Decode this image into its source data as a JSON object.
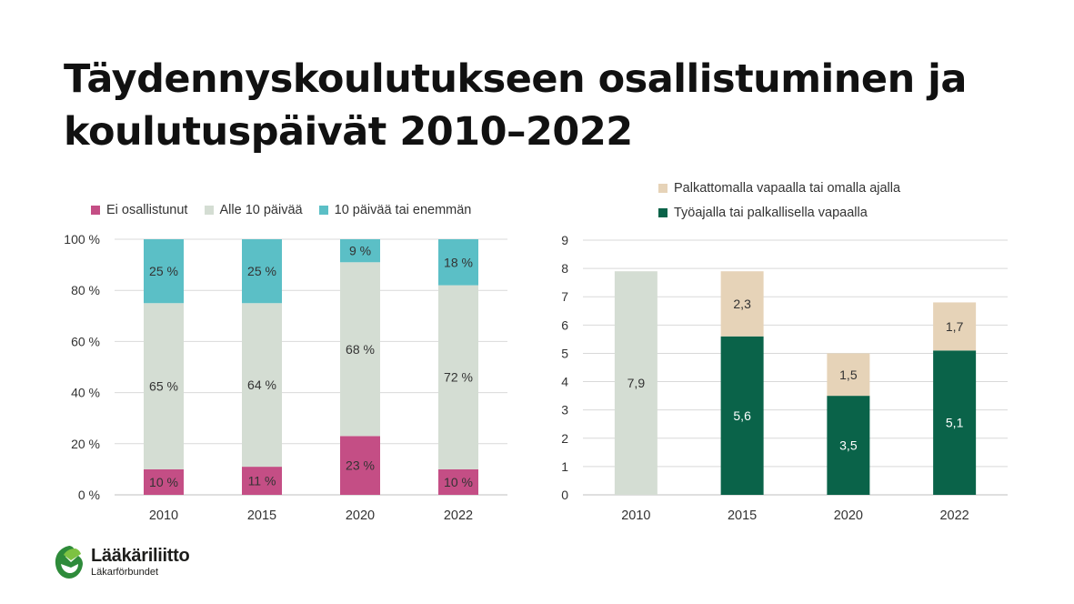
{
  "title": {
    "line1": "Täydennyskoulutukseen osallistuminen ja",
    "line2": "koulutuspäivät 2010–2022"
  },
  "logo": {
    "name": "Lääkäriliitto",
    "sub": "Läkarförbundet",
    "icon": "laakariliitto-logo-icon"
  },
  "colors": {
    "ei": "#c44e85",
    "alle": "#d4ddd3",
    "yli": "#5bbfc6",
    "palkaton": "#e6d3b8",
    "tyoaika": "#0a6349",
    "total2010": "#d4ddd3",
    "grid": "#d9d9d9",
    "axis": "#bfbfbf",
    "text": "#333333"
  },
  "chart_data": [
    {
      "type": "bar",
      "stacked": true,
      "categories": [
        "2010",
        "2015",
        "2020",
        "2022"
      ],
      "series": [
        {
          "name": "Ei osallistunut",
          "values": [
            10,
            11,
            23,
            10
          ],
          "labels": [
            "10 %",
            "11 %",
            "23 %",
            "10 %"
          ]
        },
        {
          "name": "Alle 10 päivää",
          "values": [
            65,
            64,
            68,
            72
          ],
          "labels": [
            "65 %",
            "64 %",
            "68 %",
            "72 %"
          ]
        },
        {
          "name": "10 päivää tai enemmän",
          "values": [
            25,
            25,
            9,
            18
          ],
          "labels": [
            "25 %",
            "25 %",
            "9 %",
            "18 %"
          ]
        }
      ],
      "yticks": [
        "0 %",
        "20 %",
        "40 %",
        "60 %",
        "80 %",
        "100 %"
      ],
      "ylim": [
        0,
        100
      ],
      "legend": "top"
    },
    {
      "type": "bar",
      "stacked": true,
      "categories": [
        "2010",
        "2015",
        "2020",
        "2022"
      ],
      "total_2010": {
        "value": 7.9,
        "label": "7,9"
      },
      "series": [
        {
          "name": "Työajalla tai palkallisella vapaalla",
          "values": [
            null,
            5.6,
            3.5,
            5.1
          ],
          "labels": [
            "",
            "5,6",
            "3,5",
            "5,1"
          ]
        },
        {
          "name": "Palkattomalla vapaalla tai omalla ajalla",
          "values": [
            null,
            2.3,
            1.5,
            1.7
          ],
          "labels": [
            "",
            "2,3",
            "1,5",
            "1,7"
          ]
        }
      ],
      "yticks": [
        "0",
        "1",
        "2",
        "3",
        "4",
        "5",
        "6",
        "7",
        "8",
        "9"
      ],
      "ylim": [
        0,
        9
      ],
      "legend": "top-left, vertical"
    }
  ]
}
